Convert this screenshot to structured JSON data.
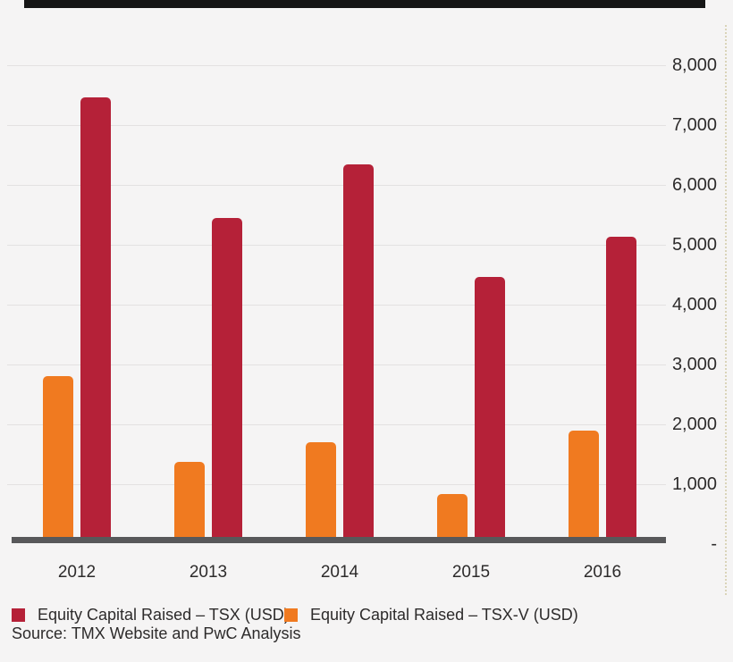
{
  "chart_data": {
    "type": "bar",
    "categories": [
      "2012",
      "2013",
      "2014",
      "2015",
      "2016"
    ],
    "series": [
      {
        "name": "Equity Capital Raised – TSX (USD)",
        "color": "#B52138",
        "values": [
          7460,
          5450,
          6340,
          4460,
          5130
        ]
      },
      {
        "name": "Equity Capital Raised – TSX-V (USD)",
        "color": "#F07A20",
        "values": [
          2800,
          1380,
          1700,
          830,
          1900
        ]
      }
    ],
    "ylim": [
      0,
      8000
    ],
    "ytick_interval": 1000,
    "ytick_labels": [
      "-",
      "1,000",
      "2,000",
      "3,000",
      "4,000",
      "5,000",
      "6,000",
      "7,000",
      "8,000"
    ],
    "grid": true,
    "legend_position": "bottom",
    "axis_side": "right"
  },
  "source_note": "Source: TMX Website and PwC Analysis",
  "colors": {
    "background": "#F5F4F4",
    "gridline": "#E3E1E1",
    "baseline": "#58585A",
    "text": "#2D2B2B",
    "tsx_red": "#B52138",
    "tsxv_orange": "#F07A20"
  }
}
